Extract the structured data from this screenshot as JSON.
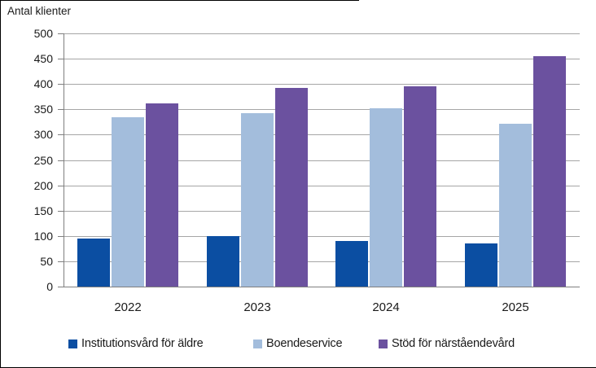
{
  "chart_data": {
    "type": "bar",
    "title": "",
    "ylabel": "Antal klienter",
    "xlabel": "",
    "categories": [
      "2022",
      "2023",
      "2024",
      "2025"
    ],
    "series": [
      {
        "name": "Institutionsvård för äldre",
        "color": "#0B4EA2",
        "values": [
          95,
          99,
          90,
          85
        ]
      },
      {
        "name": "Boendeservice",
        "color": "#A3BDDC",
        "values": [
          334,
          342,
          352,
          321
        ]
      },
      {
        "name": "Stöd för närståendevård",
        "color": "#6B519F",
        "values": [
          362,
          392,
          395,
          455
        ]
      }
    ],
    "ylim": [
      0,
      500
    ],
    "ytick_step": 50,
    "grid": "horizontal",
    "legend_position": "bottom",
    "colors": {
      "gridline": "#A6A6A6",
      "axis": "#7F7F7F",
      "text": "#1a1a1a",
      "background": "#FFFFFF"
    }
  }
}
